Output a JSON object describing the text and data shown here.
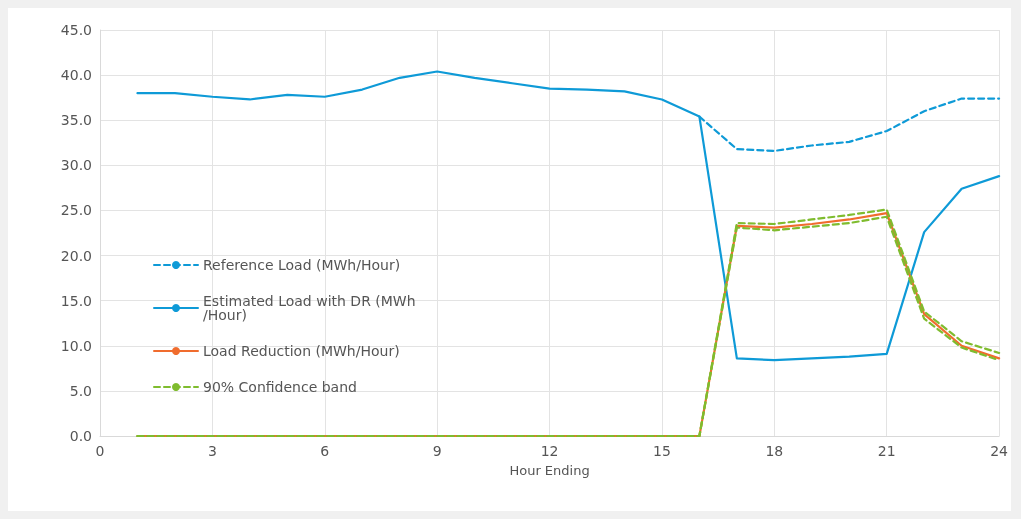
{
  "chart_data": {
    "type": "line",
    "xlabel": "Hour Ending",
    "x": [
      1,
      2,
      3,
      4,
      5,
      6,
      7,
      8,
      9,
      10,
      11,
      12,
      13,
      14,
      15,
      16,
      17,
      18,
      19,
      20,
      21,
      22,
      23,
      24
    ],
    "xlim": [
      0,
      24
    ],
    "xticks": [
      0,
      3,
      6,
      9,
      12,
      15,
      18,
      21,
      24
    ],
    "ylim": [
      0,
      45
    ],
    "yticks": [
      {
        "value": 0,
        "label": "0.0"
      },
      {
        "value": 5,
        "label": "5.0"
      },
      {
        "value": 10,
        "label": "10.0"
      },
      {
        "value": 15,
        "label": "15.0"
      },
      {
        "value": 20,
        "label": "20.0"
      },
      {
        "value": 25,
        "label": "25.0"
      },
      {
        "value": 30,
        "label": "30.0"
      },
      {
        "value": 35,
        "label": "35.0"
      },
      {
        "value": 40,
        "label": "40.0"
      },
      {
        "value": 45,
        "label": "45.0"
      }
    ],
    "grid": true,
    "legend": "left",
    "marker": "none",
    "series": [
      {
        "name": "Reference Load (MWh/Hour)",
        "color": "#0e9ad7",
        "line_style": "dashed",
        "values": [
          null,
          null,
          null,
          null,
          null,
          null,
          null,
          null,
          null,
          null,
          null,
          null,
          null,
          null,
          null,
          35.4,
          31.8,
          31.6,
          32.2,
          32.6,
          33.8,
          36.0,
          37.4,
          37.4
        ]
      },
      {
        "name": "Estimated Load with DR (MWh/Hour)",
        "color": "#0e9ad7",
        "line_style": "solid",
        "values": [
          38.0,
          38.0,
          37.6,
          37.3,
          37.8,
          37.6,
          38.4,
          39.7,
          40.4,
          39.7,
          39.1,
          38.5,
          38.4,
          38.2,
          37.3,
          35.4,
          8.6,
          8.4,
          8.6,
          8.8,
          9.1,
          22.6,
          27.4,
          28.8
        ]
      },
      {
        "name": "Load Reduction (MWh/Hour)",
        "color": "#f06c2e",
        "line_style": "solid",
        "values": [
          0,
          0,
          0,
          0,
          0,
          0,
          0,
          0,
          0,
          0,
          0,
          0,
          0,
          0,
          0,
          0,
          23.3,
          23.1,
          23.5,
          24.0,
          24.7,
          13.5,
          10.0,
          8.6
        ]
      },
      {
        "name": "90% Confidence band",
        "color": "#7fbc2e",
        "line_style": "dashed",
        "values": [
          0,
          0,
          0,
          0,
          0,
          0,
          0,
          0,
          0,
          0,
          0,
          0,
          0,
          0,
          0,
          0,
          23.6,
          23.5,
          24.0,
          24.5,
          25.1,
          13.8,
          10.5,
          9.2
        ]
      },
      {
        "color": "#7fbc2e",
        "line_style": "dashed",
        "values": [
          0,
          0,
          0,
          0,
          0,
          0,
          0,
          0,
          0,
          0,
          0,
          0,
          0,
          0,
          0,
          0,
          23.1,
          22.8,
          23.2,
          23.6,
          24.3,
          13.0,
          9.8,
          8.4
        ]
      }
    ]
  }
}
